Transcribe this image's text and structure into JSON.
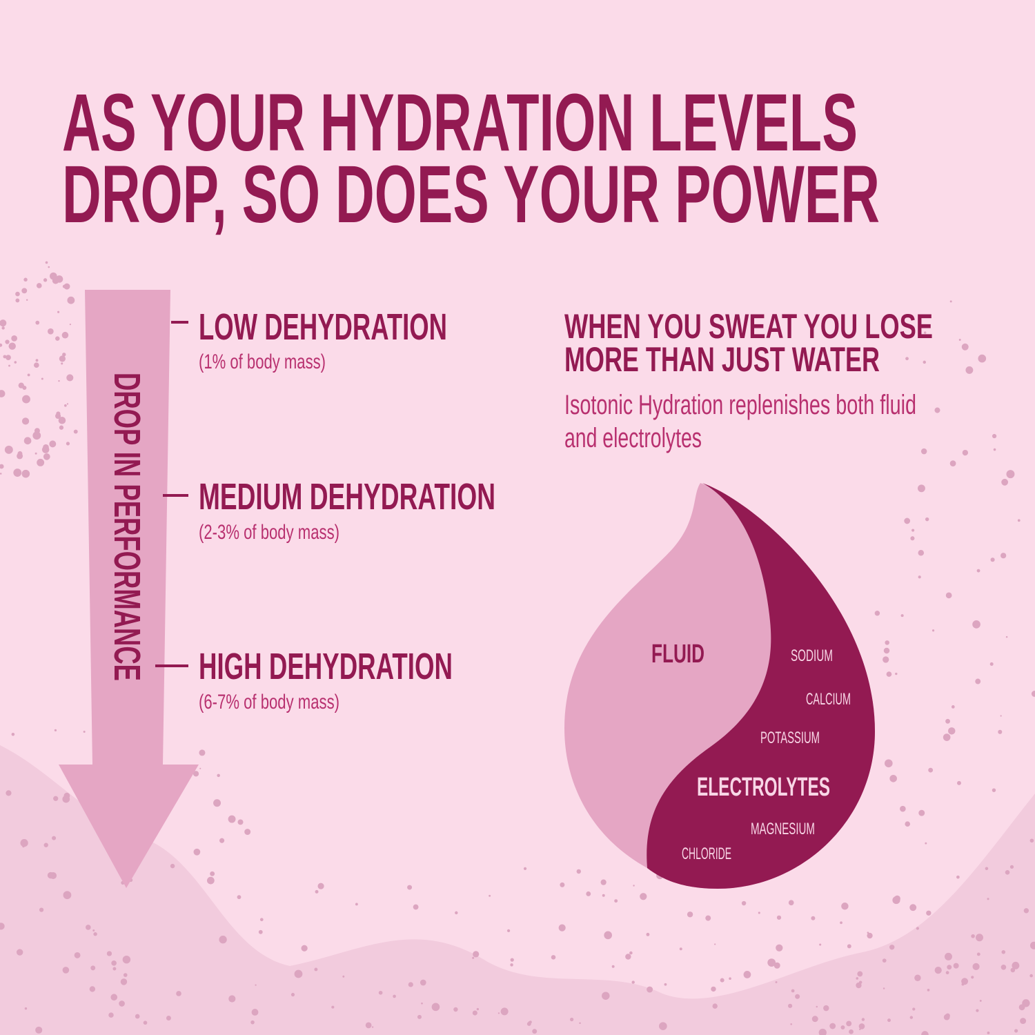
{
  "colors": {
    "background": "#fbdbe9",
    "primary": "#931a52",
    "light": "#e5a6c4",
    "body_text": "#b8306f",
    "label_on_dark": "#f8d6e6"
  },
  "title": {
    "line1": "AS YOUR HYDRATION LEVELS",
    "line2": "DROP, SO DOES YOUR POWER"
  },
  "arrow": {
    "label": "DROP IN PERFORMANCE",
    "icon": "arrow-down-icon"
  },
  "levels": [
    {
      "name": "LOW DEHYDRATION",
      "detail": "(1% of body mass)"
    },
    {
      "name": "MEDIUM DEHYDRATION",
      "detail": "(2-3% of body mass)"
    },
    {
      "name": "HIGH DEHYDRATION",
      "detail": "(6-7% of body mass)"
    }
  ],
  "sweat": {
    "heading_line1": "WHEN YOU SWEAT YOU LOSE",
    "heading_line2": "MORE THAN JUST WATER",
    "body_line1": "Isotonic Hydration replenishes both fluid",
    "body_line2": "and electrolytes"
  },
  "drop": {
    "icon": "water-drop-icon",
    "fluid_label": "FLUID",
    "electrolytes_label": "ELECTROLYTES",
    "electrolytes": [
      "SODIUM",
      "CALCIUM",
      "POTASSIUM",
      "MAGNESIUM",
      "CHLORIDE"
    ]
  }
}
